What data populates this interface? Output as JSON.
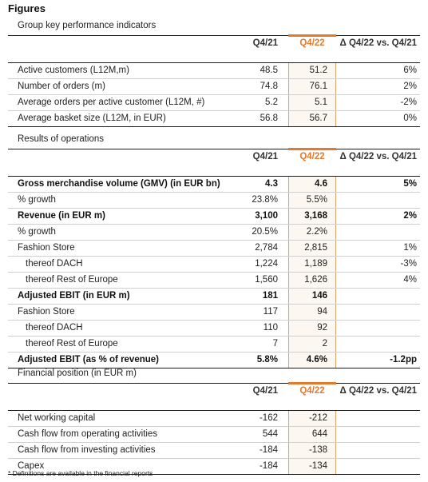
{
  "title": "Figures",
  "footnote": "* Definitions are available in the financial reports",
  "colors": {
    "accent": "#e07a2e"
  },
  "sections": [
    {
      "title": "Group key performance indicators",
      "headers": {
        "prior": "Q4/21",
        "current": "Q4/22",
        "delta": "Δ Q4/22 vs. Q4/21"
      },
      "rows": [
        {
          "label": "Active customers (L12M,m)",
          "prior": "48.5",
          "current": "51.2",
          "delta": "6%"
        },
        {
          "label": "Number of orders (m)",
          "prior": "74.8",
          "current": "76.1",
          "delta": "2%"
        },
        {
          "label": "Average orders per active customer (L12M, #)",
          "prior": "5.2",
          "current": "5.1",
          "delta": "-2%"
        },
        {
          "label": "Average basket size (L12M, in EUR)",
          "prior": "56.8",
          "current": "56.7",
          "delta": "0%"
        }
      ]
    },
    {
      "title": "Results of operations",
      "headers": {
        "prior": "Q4/21",
        "current": "Q4/22",
        "delta": "Δ Q4/22 vs. Q4/21"
      },
      "rows": [
        {
          "label": "Gross merchandise volume (GMV) (in EUR bn)",
          "prior": "4.3",
          "current": "4.6",
          "delta": "5%",
          "bold": true
        },
        {
          "label": "% growth",
          "prior": "23.8%",
          "current": "5.5%",
          "delta": ""
        },
        {
          "label": "Revenue (in EUR m)",
          "prior": "3,100",
          "current": "3,168",
          "delta": "2%",
          "bold": true
        },
        {
          "label": "% growth",
          "prior": "20.5%",
          "current": "2.2%",
          "delta": ""
        },
        {
          "label": "Fashion Store",
          "prior": "2,784",
          "current": "2,815",
          "delta": "1%"
        },
        {
          "label": "thereof DACH",
          "prior": "1,224",
          "current": "1,189",
          "delta": "-3%",
          "indent": true
        },
        {
          "label": "thereof Rest of Europe",
          "prior": "1,560",
          "current": "1,626",
          "delta": "4%",
          "indent": true
        },
        {
          "label": "Adjusted EBIT (in EUR m)",
          "prior": "181",
          "current": "146",
          "delta": "",
          "bold": true
        },
        {
          "label": "Fashion Store",
          "prior": "117",
          "current": "94",
          "delta": ""
        },
        {
          "label": "thereof DACH",
          "prior": "110",
          "current": "92",
          "delta": "",
          "indent": true
        },
        {
          "label": "thereof Rest of Europe",
          "prior": "7",
          "current": "2",
          "delta": "",
          "indent": true
        },
        {
          "label": "Adjusted EBIT (as % of revenue)",
          "prior": "5.8%",
          "current": "4.6%",
          "delta": "-1.2pp",
          "bold": true
        }
      ]
    },
    {
      "title": "Financial position (in EUR m)",
      "headers": {
        "prior": "Q4/21",
        "current": "Q4/22",
        "delta": "Δ Q4/22 vs. Q4/21"
      },
      "rows": [
        {
          "label": "Net working capital",
          "prior": "-162",
          "current": "-212",
          "delta": ""
        },
        {
          "label": "Cash flow from operating activities",
          "prior": "544",
          "current": "644",
          "delta": ""
        },
        {
          "label": "Cash flow from investing activities",
          "prior": "-184",
          "current": "-138",
          "delta": ""
        },
        {
          "label": "Capex",
          "prior": "-184",
          "current": "-134",
          "delta": ""
        }
      ]
    }
  ]
}
